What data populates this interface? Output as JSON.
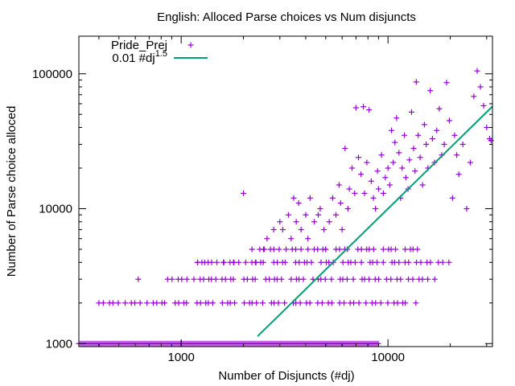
{
  "chart_data": {
    "type": "scatter",
    "title": "English: Alloced Parse choices vs Num disjuncts",
    "xlabel": "Number of Disjuncts (#dj)",
    "ylabel": "Number of Parse choice alloced",
    "xscale": "log",
    "yscale": "log",
    "xlim": [
      320,
      32000
    ],
    "ylim": [
      950,
      190000
    ],
    "xticks": [
      {
        "value": 1000,
        "label": "1000"
      },
      {
        "value": 10000,
        "label": "10000"
      }
    ],
    "yticks": [
      {
        "value": 1000,
        "label": "1000"
      },
      {
        "value": 10000,
        "label": "10000"
      },
      {
        "value": 100000,
        "label": "100000"
      }
    ],
    "legend_position": "top-left",
    "grid": false,
    "colors": {
      "points": "#9400d3",
      "fit": "#009e73"
    },
    "series": [
      {
        "name": "Pride_Prej",
        "style": "points",
        "marker": "plus",
        "points": [
          [
            620,
            3000
          ],
          [
            1200,
            4000
          ],
          [
            1300,
            4000
          ],
          [
            1400,
            3000
          ],
          [
            1600,
            4000
          ],
          [
            1800,
            4000
          ],
          [
            2000,
            13000
          ],
          [
            2200,
            5000
          ],
          [
            2300,
            4000
          ],
          [
            2500,
            5000
          ],
          [
            2600,
            6000
          ],
          [
            2800,
            7000
          ],
          [
            3000,
            8000
          ],
          [
            3100,
            7000
          ],
          [
            3300,
            9000
          ],
          [
            3400,
            6000
          ],
          [
            3500,
            12000
          ],
          [
            3600,
            8000
          ],
          [
            3700,
            11000
          ],
          [
            3800,
            7000
          ],
          [
            4000,
            9000
          ],
          [
            4100,
            6000
          ],
          [
            4200,
            12000
          ],
          [
            4400,
            8000
          ],
          [
            4600,
            9000
          ],
          [
            4700,
            10000
          ],
          [
            4900,
            7000
          ],
          [
            5000,
            5000
          ],
          [
            5200,
            8000
          ],
          [
            5400,
            12000
          ],
          [
            5600,
            9000
          ],
          [
            5800,
            15000
          ],
          [
            5900,
            11000
          ],
          [
            6000,
            7000
          ],
          [
            6200,
            28000
          ],
          [
            6400,
            10000
          ],
          [
            6500,
            14000
          ],
          [
            6700,
            20000
          ],
          [
            6900,
            13000
          ],
          [
            7000,
            56000
          ],
          [
            7200,
            24000
          ],
          [
            7400,
            18000
          ],
          [
            7600,
            57000
          ],
          [
            7700,
            13000
          ],
          [
            7900,
            22000
          ],
          [
            8100,
            54000
          ],
          [
            8300,
            16000
          ],
          [
            8500,
            12000
          ],
          [
            8700,
            10000
          ],
          [
            8900,
            19000
          ],
          [
            9000,
            14000
          ],
          [
            9300,
            25000
          ],
          [
            9500,
            13000
          ],
          [
            9700,
            17000
          ],
          [
            10000,
            20000
          ],
          [
            10200,
            15000
          ],
          [
            10400,
            38000
          ],
          [
            10600,
            22000
          ],
          [
            10800,
            31000
          ],
          [
            11000,
            47000
          ],
          [
            11300,
            26000
          ],
          [
            11500,
            12000
          ],
          [
            11700,
            20000
          ],
          [
            12000,
            35000
          ],
          [
            12200,
            17000
          ],
          [
            12500,
            14000
          ],
          [
            12700,
            23000
          ],
          [
            13000,
            52000
          ],
          [
            13300,
            28000
          ],
          [
            13500,
            19000
          ],
          [
            13700,
            87000
          ],
          [
            14000,
            35000
          ],
          [
            14300,
            24000
          ],
          [
            14700,
            15000
          ],
          [
            15000,
            42000
          ],
          [
            15300,
            30000
          ],
          [
            15600,
            20000
          ],
          [
            16000,
            75000
          ],
          [
            16400,
            33000
          ],
          [
            16800,
            22000
          ],
          [
            17200,
            38000
          ],
          [
            17700,
            55000
          ],
          [
            18200,
            25000
          ],
          [
            18700,
            30000
          ],
          [
            19200,
            86000
          ],
          [
            19800,
            45000
          ],
          [
            20500,
            12000
          ],
          [
            21000,
            35000
          ],
          [
            21500,
            25000
          ],
          [
            22000,
            18000
          ],
          [
            23000,
            30000
          ],
          [
            24000,
            10000
          ],
          [
            25000,
            22000
          ],
          [
            26000,
            68000
          ],
          [
            27000,
            105000
          ],
          [
            28000,
            80000
          ],
          [
            29000,
            58000
          ],
          [
            30000,
            40000
          ],
          [
            31000,
            33000
          ],
          [
            31500,
            32000
          ]
        ],
        "bands": [
          {
            "y": 1000,
            "x_from": 320,
            "x_to": 9000
          },
          {
            "y": 2000,
            "x_from": 400,
            "x_to": 14000
          },
          {
            "y": 3000,
            "x_from": 860,
            "x_to": 18000
          },
          {
            "y": 4000,
            "x_from": 1200,
            "x_to": 20000
          },
          {
            "y": 5000,
            "x_from": 2400,
            "x_to": 14000
          }
        ]
      },
      {
        "name": "0.01 #dj^1.5",
        "style": "line",
        "x": [
          2340,
          2600,
          3000,
          4000,
          5000,
          6000,
          8000,
          10000,
          15000,
          20000,
          25000,
          32000
        ],
        "y": [
          1132,
          1326,
          1643,
          2530,
          3536,
          4648,
          7155,
          10000,
          18371,
          28284,
          39528,
          57243
        ]
      }
    ]
  }
}
